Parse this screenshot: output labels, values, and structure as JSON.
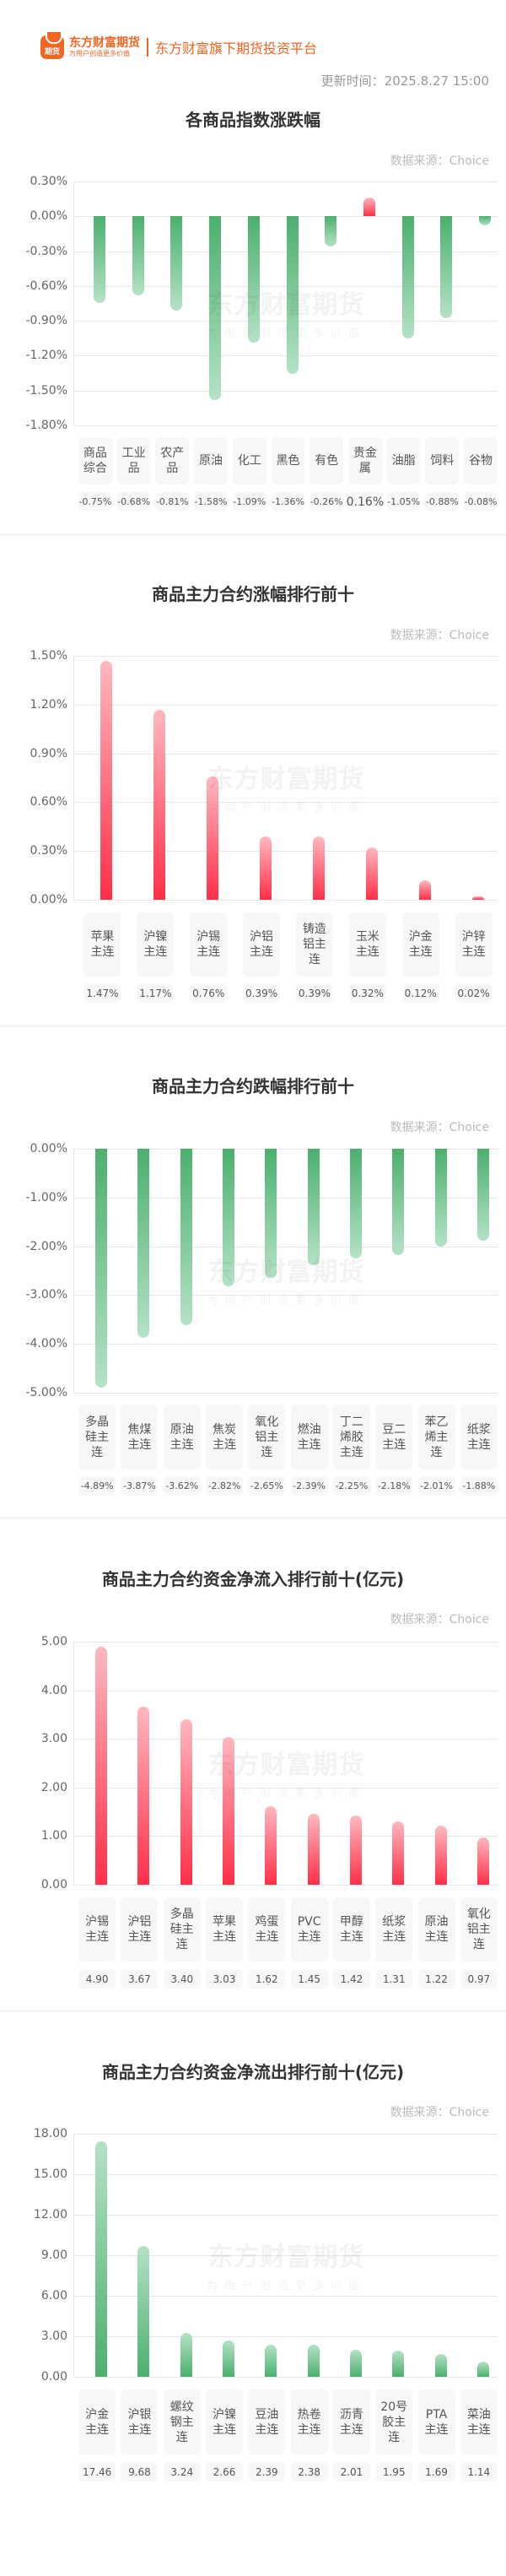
{
  "header": {
    "logo_badge": "期货",
    "logo_main": "东方财富期货",
    "logo_sub": "为用户创造更多价值",
    "slogan": "东方财富旗下期货投资平台",
    "update_time": "更新时间：2025.8.27 15:00"
  },
  "watermark": {
    "main": "东方财富期货",
    "sub": "为用户创造更多价值"
  },
  "colors": {
    "brand": "#f26522",
    "up": "#ff2f47",
    "down": "#4bb06e"
  },
  "sections": [
    {
      "title": "各商品指数涨跌幅",
      "source": "数据来源：Choice",
      "y_ticks": [
        "0.30%",
        "0.00%",
        "-0.30%",
        "-0.60%",
        "-0.90%",
        "-1.20%",
        "-1.50%",
        "-1.80%"
      ]
    },
    {
      "title": "商品主力合约涨幅排行前十",
      "source": "数据来源：Choice",
      "y_ticks": [
        "1.50%",
        "1.20%",
        "0.90%",
        "0.60%",
        "0.30%",
        "0.00%"
      ]
    },
    {
      "title": "商品主力合约跌幅排行前十",
      "source": "数据来源：Choice",
      "y_ticks": [
        "0.00%",
        "-1.00%",
        "-2.00%",
        "-3.00%",
        "-4.00%",
        "-5.00%"
      ]
    },
    {
      "title": "商品主力合约资金净流入排行前十(亿元)",
      "source": "数据来源：Choice",
      "y_ticks": [
        "5.00",
        "4.00",
        "3.00",
        "2.00",
        "1.00",
        "0.00"
      ]
    },
    {
      "title": "商品主力合约资金净流出排行前十(亿元)",
      "source": "数据来源：Choice",
      "y_ticks": [
        "18.00",
        "15.00",
        "12.00",
        "9.00",
        "6.00",
        "3.00",
        "0.00"
      ]
    }
  ],
  "chart_data": [
    {
      "type": "bar",
      "title": "各商品指数涨跌幅",
      "categories": [
        "商品综合",
        "工业品",
        "农产品",
        "原油",
        "化工",
        "黑色",
        "有色",
        "贵金属",
        "油脂",
        "饲料",
        "谷物"
      ],
      "values": [
        -0.75,
        -0.68,
        -0.81,
        -1.58,
        -1.09,
        -1.36,
        -0.26,
        0.16,
        -1.05,
        -0.88,
        -0.08
      ],
      "value_labels": [
        "-0.75%",
        "-0.68%",
        "-0.81%",
        "-1.58%",
        "-1.09%",
        "-1.36%",
        "-0.26%",
        "0.16%",
        "-1.05%",
        "-0.88%",
        "-0.08%"
      ],
      "ylabel": "%",
      "ylim": [
        -1.8,
        0.3
      ],
      "grid": true
    },
    {
      "type": "bar",
      "title": "商品主力合约涨幅排行前十",
      "categories": [
        "苹果主连",
        "沪镍主连",
        "沪锡主连",
        "沪铝主连",
        "铸造铝主连",
        "玉米主连",
        "沪金主连",
        "沪锌主连"
      ],
      "values": [
        1.47,
        1.17,
        0.76,
        0.39,
        0.39,
        0.32,
        0.12,
        0.02
      ],
      "value_labels": [
        "1.47%",
        "1.17%",
        "0.76%",
        "0.39%",
        "0.39%",
        "0.32%",
        "0.12%",
        "0.02%"
      ],
      "ylabel": "%",
      "ylim": [
        0,
        1.5
      ],
      "grid": true
    },
    {
      "type": "bar",
      "title": "商品主力合约跌幅排行前十",
      "categories": [
        "多晶硅主连",
        "焦煤主连",
        "原油主连",
        "焦炭主连",
        "氧化铝主连",
        "燃油主连",
        "丁二烯胶主连",
        "豆二主连",
        "苯乙烯主连",
        "纸浆主连"
      ],
      "values": [
        -4.89,
        -3.87,
        -3.62,
        -2.82,
        -2.65,
        -2.39,
        -2.25,
        -2.18,
        -2.01,
        -1.88
      ],
      "value_labels": [
        "-4.89%",
        "-3.87%",
        "-3.62%",
        "-2.82%",
        "-2.65%",
        "-2.39%",
        "-2.25%",
        "-2.18%",
        "-2.01%",
        "-1.88%"
      ],
      "ylabel": "%",
      "ylim": [
        -5,
        0
      ],
      "grid": true
    },
    {
      "type": "bar",
      "title": "商品主力合约资金净流入排行前十(亿元)",
      "categories": [
        "沪锡主连",
        "沪铝主连",
        "多晶硅主连",
        "苹果主连",
        "鸡蛋主连",
        "PVC主连",
        "甲醇主连",
        "纸浆主连",
        "原油主连",
        "氧化铝主连"
      ],
      "values": [
        4.9,
        3.67,
        3.4,
        3.03,
        1.62,
        1.45,
        1.42,
        1.31,
        1.22,
        0.97
      ],
      "value_labels": [
        "4.90",
        "3.67",
        "3.40",
        "3.03",
        "1.62",
        "1.45",
        "1.42",
        "1.31",
        "1.22",
        "0.97"
      ],
      "ylabel": "亿元",
      "ylim": [
        0,
        5
      ],
      "grid": true
    },
    {
      "type": "bar",
      "title": "商品主力合约资金净流出排行前十(亿元)",
      "categories": [
        "沪金主连",
        "沪银主连",
        "螺纹钢主连",
        "沪镍主连",
        "豆油主连",
        "热卷主连",
        "沥青主连",
        "20号胶主连",
        "PTA主连",
        "菜油主连"
      ],
      "values": [
        17.46,
        9.68,
        3.24,
        2.66,
        2.39,
        2.38,
        2.01,
        1.95,
        1.69,
        1.14
      ],
      "value_labels": [
        "17.46",
        "9.68",
        "3.24",
        "2.66",
        "2.39",
        "2.38",
        "2.01",
        "1.95",
        "1.69",
        "1.14"
      ],
      "ylabel": "亿元",
      "ylim": [
        0,
        18
      ],
      "grid": true
    }
  ]
}
